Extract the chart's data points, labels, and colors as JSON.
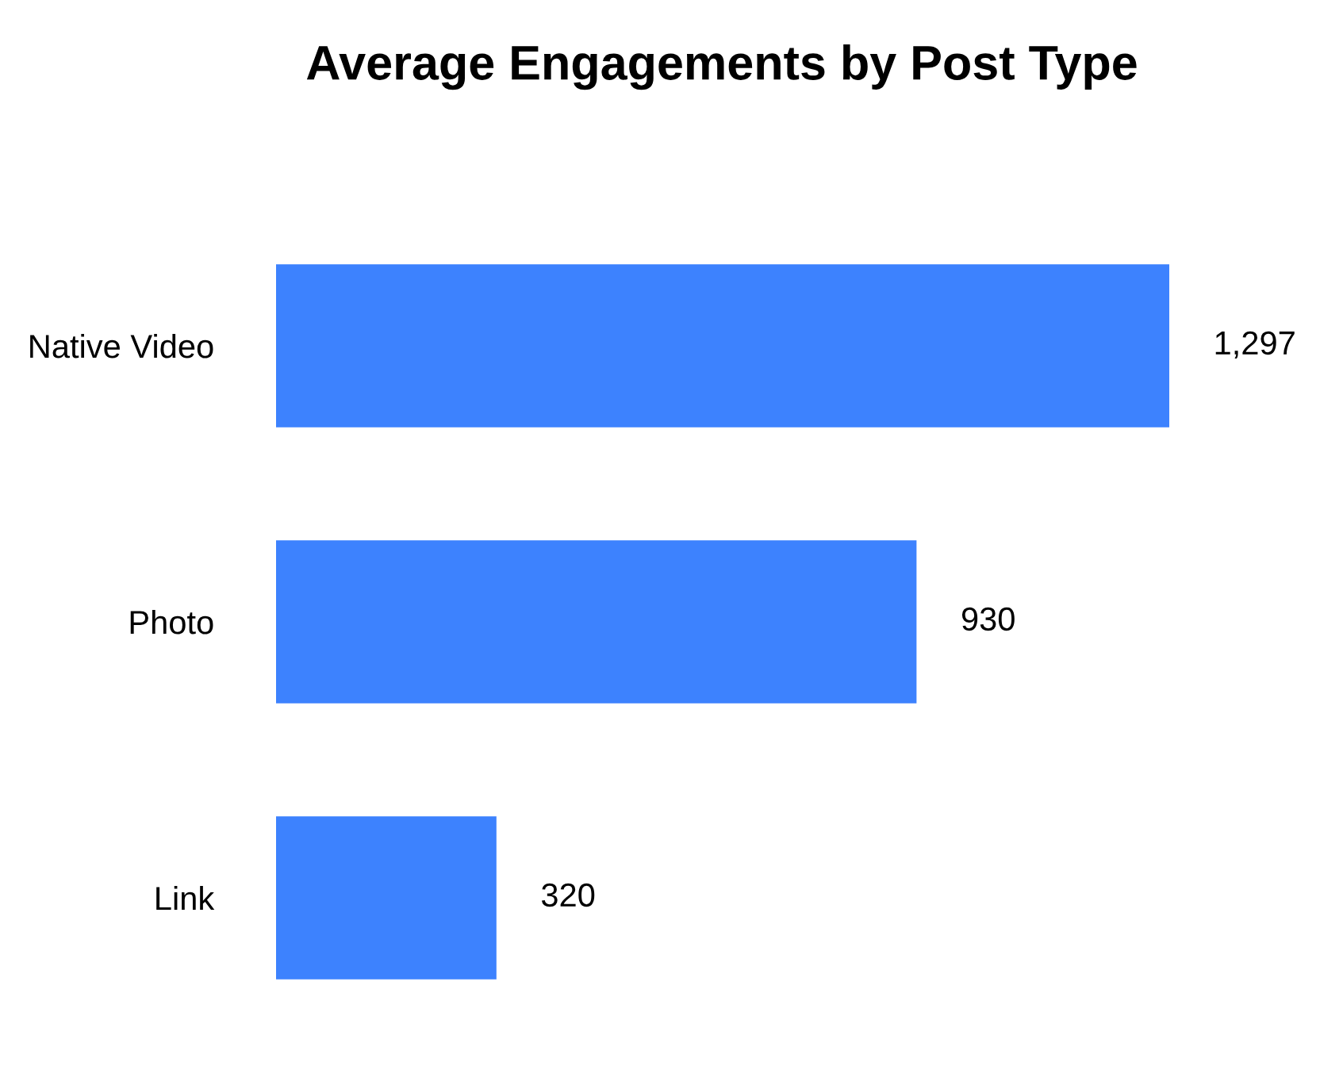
{
  "chart_data": {
    "type": "bar",
    "orientation": "horizontal",
    "title": "Average Engagements by Post Type",
    "categories": [
      "Native Video",
      "Photo",
      "Link"
    ],
    "values": [
      1297,
      930,
      320
    ],
    "value_labels": [
      "1,297",
      "930",
      "320"
    ],
    "color": "#3d82fe",
    "grid": false,
    "legend": false
  }
}
